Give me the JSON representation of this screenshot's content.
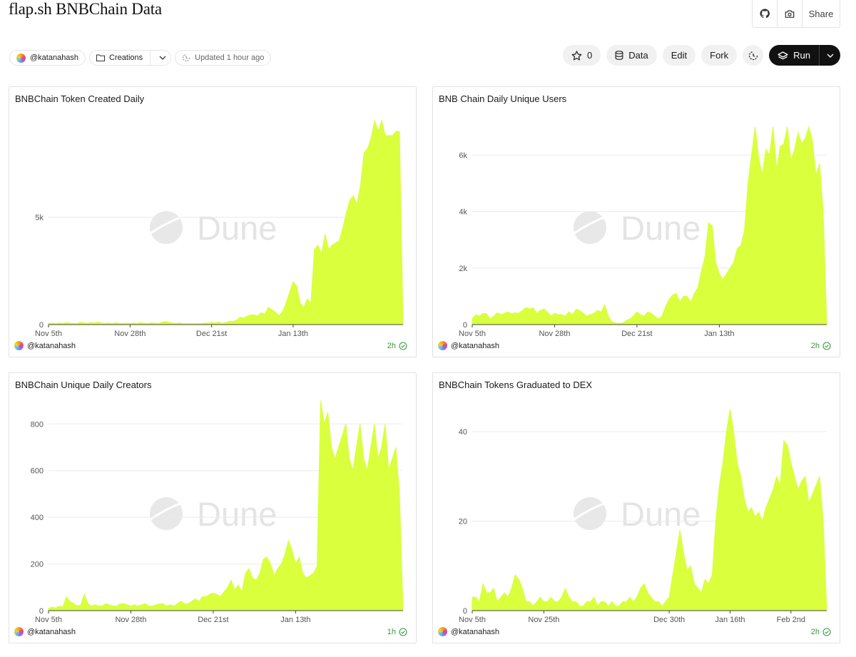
{
  "dashboard": {
    "title": "flap.sh BNBChain Data",
    "author": "@katanahash",
    "collection": "Creations",
    "updated": "Updated 1 hour ago"
  },
  "topbar": {
    "share_label": "Share",
    "icons": [
      "github-icon",
      "camera-icon"
    ]
  },
  "actions": {
    "star_count": "0",
    "data_label": "Data",
    "edit_label": "Edit",
    "fork_label": "Fork",
    "run_label": "Run"
  },
  "watermark": "Dune",
  "colors": {
    "area": "#d9ff3d",
    "grid": "#ebebeb",
    "ok": "#3a9a3a"
  },
  "charts": [
    {
      "title": "BNBChain Token Created Daily",
      "author": "@katanahash",
      "age": "2h",
      "chart_data": {
        "type": "area",
        "title": "BNBChain Token Created Daily",
        "xlabel": "",
        "ylabel": "",
        "ylim": [
          0,
          10000
        ],
        "yticks": [
          {
            "v": 0,
            "label": "0"
          },
          {
            "v": 5000,
            "label": "5k"
          }
        ],
        "xticks": [
          {
            "i": 0,
            "label": "Nov 5th"
          },
          {
            "i": 23,
            "label": "Nov 28th"
          },
          {
            "i": 46,
            "label": "Dec 21st"
          },
          {
            "i": 69,
            "label": "Jan 13th"
          }
        ],
        "values": [
          60,
          70,
          50,
          80,
          60,
          90,
          70,
          60,
          50,
          110,
          80,
          60,
          100,
          70,
          120,
          70,
          60,
          80,
          50,
          90,
          60,
          60,
          70,
          50,
          80,
          60,
          90,
          70,
          50,
          80,
          70,
          60,
          110,
          150,
          100,
          70,
          60,
          80,
          50,
          60,
          50,
          40,
          60,
          50,
          70,
          70,
          100,
          80,
          120,
          60,
          90,
          160,
          150,
          200,
          350,
          300,
          400,
          450,
          450,
          400,
          550,
          480,
          800,
          700,
          580,
          420,
          600,
          1000,
          1500,
          2000,
          1800,
          1000,
          800,
          1200,
          1000,
          3500,
          3700,
          3300,
          4200,
          3500,
          3700,
          3800,
          3900,
          4500,
          5200,
          5800,
          6000,
          5600,
          6500,
          8000,
          8200,
          8700,
          9500,
          9000,
          9500,
          8800,
          8800,
          8800,
          9000,
          9000,
          0
        ]
      }
    },
    {
      "title": "BNB Chain Daily Unique Users",
      "author": "@katanahash",
      "age": "2h",
      "chart_data": {
        "type": "area",
        "title": "BNB Chain Daily Unique Users",
        "xlabel": "",
        "ylabel": "",
        "ylim": [
          0,
          7600
        ],
        "yticks": [
          {
            "v": 0,
            "label": "0"
          },
          {
            "v": 2000,
            "label": "2k"
          },
          {
            "v": 4000,
            "label": "4k"
          },
          {
            "v": 6000,
            "label": "6k"
          }
        ],
        "xticks": [
          {
            "i": 0,
            "label": "Nov 5th"
          },
          {
            "i": 23,
            "label": "Nov 28th"
          },
          {
            "i": 46,
            "label": "Dec 21st"
          },
          {
            "i": 69,
            "label": "Jan 13th"
          }
        ],
        "values": [
          200,
          350,
          300,
          400,
          380,
          200,
          300,
          420,
          350,
          400,
          450,
          380,
          420,
          400,
          500,
          600,
          550,
          600,
          400,
          500,
          550,
          450,
          300,
          400,
          350,
          350,
          300,
          450,
          350,
          550,
          500,
          400,
          300,
          350,
          400,
          500,
          450,
          700,
          300,
          100,
          50,
          50,
          50,
          150,
          200,
          300,
          450,
          350,
          300,
          450,
          400,
          300,
          200,
          300,
          650,
          900,
          1050,
          1100,
          800,
          1000,
          1000,
          800,
          1100,
          1300,
          1900,
          2400,
          3600,
          3500,
          2200,
          1800,
          1600,
          1800,
          2000,
          2200,
          2700,
          2800,
          3300,
          5000,
          6000,
          7000,
          5900,
          5300,
          6200,
          6000,
          7000,
          5500,
          6300,
          6400,
          7000,
          5800,
          6200,
          6800,
          6400,
          6600,
          7000,
          6500,
          5300,
          5700,
          4000,
          0
        ]
      }
    },
    {
      "title": "BNBChain Unique Daily Creators",
      "author": "@katanahash",
      "age": "1h",
      "chart_data": {
        "type": "area",
        "title": "BNBChain Unique Daily Creators",
        "xlabel": "",
        "ylabel": "",
        "ylim": [
          0,
          920
        ],
        "yticks": [
          {
            "v": 0,
            "label": "0"
          },
          {
            "v": 200,
            "label": "200"
          },
          {
            "v": 400,
            "label": "400"
          },
          {
            "v": 600,
            "label": "600"
          },
          {
            "v": 800,
            "label": "800"
          }
        ],
        "xticks": [
          {
            "i": 0,
            "label": "Nov 5th"
          },
          {
            "i": 23,
            "label": "Nov 28th"
          },
          {
            "i": 46,
            "label": "Dec 21st"
          },
          {
            "i": 69,
            "label": "Jan 13th"
          }
        ],
        "values": [
          10,
          15,
          12,
          20,
          15,
          60,
          40,
          30,
          20,
          25,
          70,
          30,
          20,
          25,
          20,
          20,
          30,
          25,
          20,
          20,
          30,
          30,
          25,
          20,
          25,
          20,
          25,
          30,
          20,
          20,
          25,
          30,
          30,
          20,
          25,
          20,
          30,
          40,
          30,
          30,
          40,
          50,
          40,
          60,
          60,
          70,
          75,
          70,
          60,
          80,
          100,
          130,
          90,
          110,
          80,
          160,
          180,
          140,
          130,
          160,
          220,
          230,
          200,
          150,
          180,
          200,
          240,
          300,
          260,
          200,
          230,
          160,
          140,
          150,
          160,
          190,
          900,
          800,
          850,
          700,
          650,
          700,
          750,
          800,
          650,
          600,
          700,
          800,
          650,
          600,
          700,
          800,
          650,
          700,
          800,
          600,
          650,
          700,
          500,
          0
        ]
      }
    },
    {
      "title": "BNBChain Tokens Graduated to DEX",
      "author": "@katanahash",
      "age": "2h",
      "chart_data": {
        "type": "area",
        "title": "BNBChain Tokens Graduated to DEX",
        "xlabel": "",
        "ylabel": "",
        "ylim": [
          0,
          48
        ],
        "yticks": [
          {
            "v": 0,
            "label": "0"
          },
          {
            "v": 20,
            "label": "20"
          },
          {
            "v": 40,
            "label": "40"
          }
        ],
        "xticks": [
          {
            "i": 0,
            "label": "Nov 5th"
          },
          {
            "i": 20,
            "label": "Nov 25th"
          },
          {
            "i": 55,
            "label": "Dec 30th"
          },
          {
            "i": 72,
            "label": "Jan 16th"
          },
          {
            "i": 89,
            "label": "Feb 2nd"
          }
        ],
        "values": [
          3,
          3,
          2,
          6,
          4,
          4,
          5,
          2,
          3,
          4,
          3,
          5,
          8,
          7,
          5,
          2,
          2,
          1,
          2,
          3,
          2,
          2,
          3,
          2,
          2,
          3,
          5,
          3,
          2,
          2,
          1,
          1,
          2,
          2,
          3,
          1,
          2,
          2,
          1,
          2,
          1,
          1,
          2,
          2,
          3,
          2,
          3,
          5,
          6,
          4,
          3,
          2,
          2,
          1,
          2,
          3,
          8,
          13,
          18,
          13,
          9,
          10,
          6,
          5,
          4,
          7,
          6,
          8,
          20,
          28,
          33,
          40,
          45,
          40,
          33,
          30,
          25,
          22,
          23,
          21,
          22,
          20,
          23,
          25,
          27,
          30,
          28,
          38,
          37,
          33,
          30,
          27,
          29,
          30,
          24,
          26,
          28,
          30,
          20,
          0
        ]
      }
    }
  ]
}
